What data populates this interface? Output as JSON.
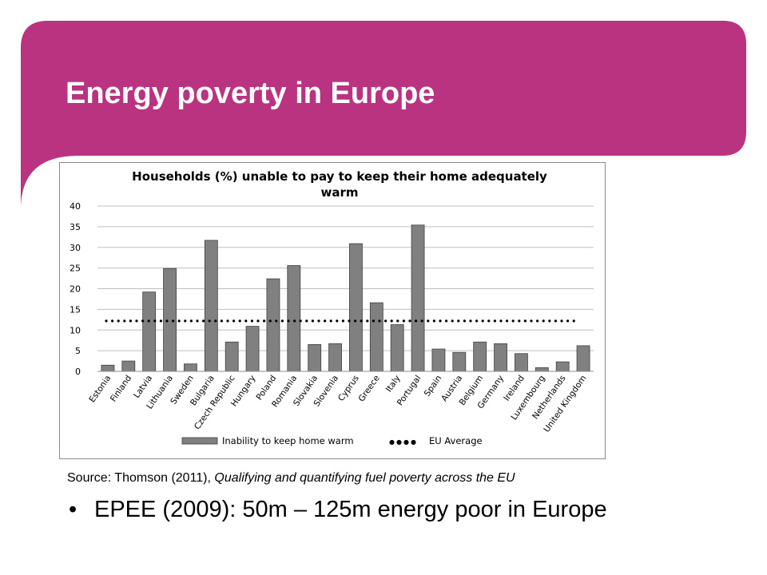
{
  "slide": {
    "title": "Energy poverty in Europe",
    "accent_color": "#b93380",
    "source_prefix": "Source: Thomson (2011), ",
    "source_title": "Qualifying and quantifying fuel poverty across the EU",
    "bullet_glyph": "•",
    "bullet_text": "EPEE (2009): 50m – 125m energy poor in Europe"
  },
  "chart_data": {
    "type": "bar",
    "title": "Households (%) unable to pay to keep their home adequately warm",
    "title_lines": [
      "Households (%) unable to pay to keep their home adequately",
      "warm"
    ],
    "categories": [
      "Estonia",
      "Finland",
      "Latvia",
      "Lithuania",
      "Sweden",
      "Bulgaria",
      "Czech Republic",
      "Hungary",
      "Poland",
      "Romania",
      "Slovakia",
      "Slovenia",
      "Cyprus",
      "Greece",
      "Italy",
      "Portugal",
      "Spain",
      "Austria",
      "Belgium",
      "Germany",
      "Ireland",
      "Luxembourg",
      "Netherlands",
      "United Kingdom"
    ],
    "series": [
      {
        "name": "Inability to keep home warm",
        "type": "bar",
        "color": "#808080",
        "values": [
          1.5,
          2.5,
          19.2,
          24.9,
          1.8,
          31.7,
          7.1,
          10.9,
          22.4,
          25.6,
          6.5,
          6.7,
          30.9,
          16.6,
          11.3,
          35.4,
          5.4,
          4.6,
          7.1,
          6.7,
          4.3,
          0.9,
          2.3,
          6.2
        ]
      },
      {
        "name": "EU Average",
        "type": "dotted-line",
        "color": "#000000",
        "value": 12.2
      }
    ],
    "ylim": [
      0,
      40
    ],
    "yticks": [
      0,
      5,
      10,
      15,
      20,
      25,
      30,
      35,
      40
    ],
    "xlabel": "",
    "ylabel": "",
    "grid": true,
    "legend": "bottom",
    "legend_dots": "●●●●"
  }
}
